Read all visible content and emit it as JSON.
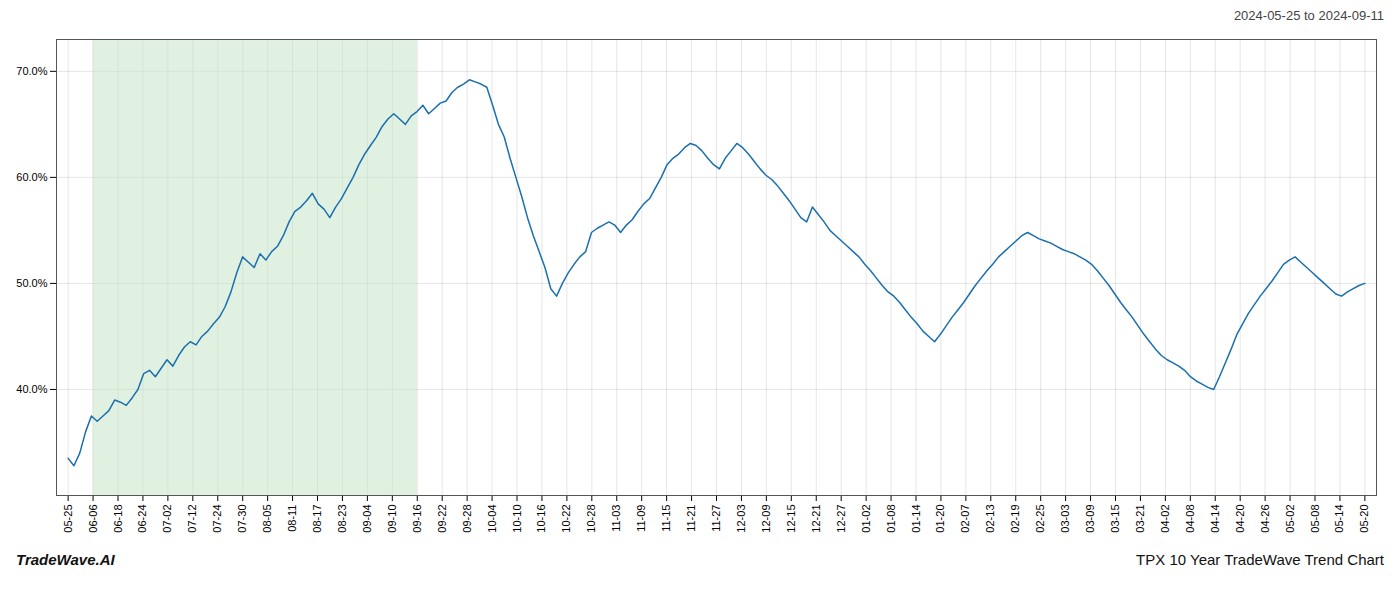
{
  "chart_data": {
    "type": "line",
    "title": "2024-05-25 to 2024-09-11",
    "annotations": [
      "TradeWave.AI",
      "TPX 10 Year TradeWave Trend Chart"
    ],
    "color": "#1a6faf",
    "grid": true,
    "xlim": [
      -2,
      225
    ],
    "xticks": [
      {
        "value": 0,
        "label": "05-25"
      },
      {
        "value": 4.288462,
        "label": "06-06"
      },
      {
        "value": 8.576923,
        "label": "06-18"
      },
      {
        "value": 12.865385,
        "label": "06-24"
      },
      {
        "value": 17.153846,
        "label": "07-02"
      },
      {
        "value": 21.442308,
        "label": "07-12"
      },
      {
        "value": 25.730769,
        "label": "07-24"
      },
      {
        "value": 30.019231,
        "label": "07-30"
      },
      {
        "value": 34.307692,
        "label": "08-05"
      },
      {
        "value": 38.596154,
        "label": "08-11"
      },
      {
        "value": 42.884615,
        "label": "08-17"
      },
      {
        "value": 47.173077,
        "label": "08-23"
      },
      {
        "value": 51.461538,
        "label": "09-04"
      },
      {
        "value": 55.75,
        "label": "09-10"
      },
      {
        "value": 60.038462,
        "label": "09-16"
      },
      {
        "value": 64.326923,
        "label": "09-22"
      },
      {
        "value": 68.615385,
        "label": "09-28"
      },
      {
        "value": 72.903846,
        "label": "10-04"
      },
      {
        "value": 77.192308,
        "label": "10-10"
      },
      {
        "value": 81.480769,
        "label": "10-16"
      },
      {
        "value": 85.769231,
        "label": "10-22"
      },
      {
        "value": 90.057692,
        "label": "10-28"
      },
      {
        "value": 94.346154,
        "label": "11-03"
      },
      {
        "value": 98.634615,
        "label": "11-09"
      },
      {
        "value": 102.923077,
        "label": "11-15"
      },
      {
        "value": 107.211538,
        "label": "11-21"
      },
      {
        "value": 111.5,
        "label": "11-27"
      },
      {
        "value": 115.788462,
        "label": "12-03"
      },
      {
        "value": 120.076923,
        "label": "12-09"
      },
      {
        "value": 124.365385,
        "label": "12-15"
      },
      {
        "value": 128.653846,
        "label": "12-21"
      },
      {
        "value": 132.942308,
        "label": "12-27"
      },
      {
        "value": 137.230769,
        "label": "01-02"
      },
      {
        "value": 141.519231,
        "label": "01-08"
      },
      {
        "value": 145.807692,
        "label": "01-14"
      },
      {
        "value": 150.096154,
        "label": "01-20"
      },
      {
        "value": 154.384615,
        "label": "02-07"
      },
      {
        "value": 158.673077,
        "label": "02-13"
      },
      {
        "value": 162.961538,
        "label": "02-19"
      },
      {
        "value": 167.25,
        "label": "02-25"
      },
      {
        "value": 171.538462,
        "label": "03-03"
      },
      {
        "value": 175.826923,
        "label": "03-09"
      },
      {
        "value": 180.115385,
        "label": "03-15"
      },
      {
        "value": 184.403846,
        "label": "03-21"
      },
      {
        "value": 188.692308,
        "label": "04-02"
      },
      {
        "value": 192.980769,
        "label": "04-08"
      },
      {
        "value": 197.269231,
        "label": "04-14"
      },
      {
        "value": 201.557692,
        "label": "04-20"
      },
      {
        "value": 205.846154,
        "label": "04-26"
      },
      {
        "value": 210.134615,
        "label": "05-02"
      },
      {
        "value": 214.423077,
        "label": "05-08"
      },
      {
        "value": 218.711538,
        "label": "05-14"
      },
      {
        "value": 223,
        "label": "05-20"
      }
    ],
    "ylim": [
      0.3,
      0.73
    ],
    "yticks": [
      {
        "value": 0.4,
        "label": "40.0%"
      },
      {
        "value": 0.5,
        "label": "50.0%"
      },
      {
        "value": 0.6,
        "label": "60.0%"
      },
      {
        "value": 0.7,
        "label": "70.0%"
      }
    ],
    "shaded_span": {
      "from": "06-06",
      "to": "09-16",
      "color": "#c8e6c8"
    },
    "values": [
      0.335,
      0.328,
      0.34,
      0.36,
      0.375,
      0.37,
      0.375,
      0.38,
      0.39,
      0.388,
      0.385,
      0.392,
      0.4,
      0.415,
      0.418,
      0.412,
      0.42,
      0.428,
      0.422,
      0.432,
      0.44,
      0.445,
      0.442,
      0.45,
      0.455,
      0.462,
      0.468,
      0.478,
      0.492,
      0.51,
      0.525,
      0.52,
      0.515,
      0.528,
      0.522,
      0.53,
      0.535,
      0.545,
      0.558,
      0.568,
      0.572,
      0.578,
      0.585,
      0.575,
      0.57,
      0.562,
      0.572,
      0.58,
      0.59,
      0.6,
      0.612,
      0.622,
      0.63,
      0.638,
      0.648,
      0.655,
      0.66,
      0.655,
      0.65,
      0.658,
      0.662,
      0.668,
      0.66,
      0.665,
      0.67,
      0.672,
      0.68,
      0.685,
      0.688,
      0.692,
      0.69,
      0.688,
      0.685,
      0.668,
      0.65,
      0.638,
      0.618,
      0.6,
      0.582,
      0.562,
      0.545,
      0.53,
      0.515,
      0.495,
      0.488,
      0.5,
      0.51,
      0.518,
      0.525,
      0.53,
      0.548,
      0.552,
      0.555,
      0.558,
      0.555,
      0.548,
      0.555,
      0.56,
      0.568,
      0.575,
      0.58,
      0.59,
      0.6,
      0.612,
      0.618,
      0.622,
      0.628,
      0.632,
      0.63,
      0.625,
      0.618,
      0.612,
      0.608,
      0.618,
      0.625,
      0.632,
      0.628,
      0.622,
      0.615,
      0.608,
      0.602,
      0.598,
      0.592,
      0.585,
      0.578,
      0.57,
      0.562,
      0.558,
      0.572,
      0.565,
      0.558,
      0.55,
      0.545,
      0.54,
      0.535,
      0.53,
      0.525,
      0.518,
      0.512,
      0.505,
      0.498,
      0.492,
      0.488,
      0.482,
      0.475,
      0.468,
      0.462,
      0.455,
      0.45,
      0.445,
      0.452,
      0.46,
      0.468,
      0.475,
      0.482,
      0.49,
      0.498,
      0.505,
      0.512,
      0.518,
      0.525,
      0.53,
      0.535,
      0.54,
      0.545,
      0.548,
      0.545,
      0.542,
      0.54,
      0.538,
      0.535,
      0.532,
      0.53,
      0.528,
      0.525,
      0.522,
      0.518,
      0.512,
      0.505,
      0.498,
      0.49,
      0.482,
      0.475,
      0.468,
      0.46,
      0.452,
      0.445,
      0.438,
      0.432,
      0.428,
      0.425,
      0.422,
      0.418,
      0.412,
      0.408,
      0.405,
      0.402,
      0.4,
      0.412,
      0.425,
      0.438,
      0.452,
      0.462,
      0.472,
      0.48,
      0.488,
      0.495,
      0.502,
      0.51,
      0.518,
      0.522,
      0.525,
      0.52,
      0.515,
      0.51,
      0.505,
      0.5,
      0.495,
      0.49,
      0.488,
      0.492,
      0.495,
      0.498,
      0.5
    ]
  }
}
